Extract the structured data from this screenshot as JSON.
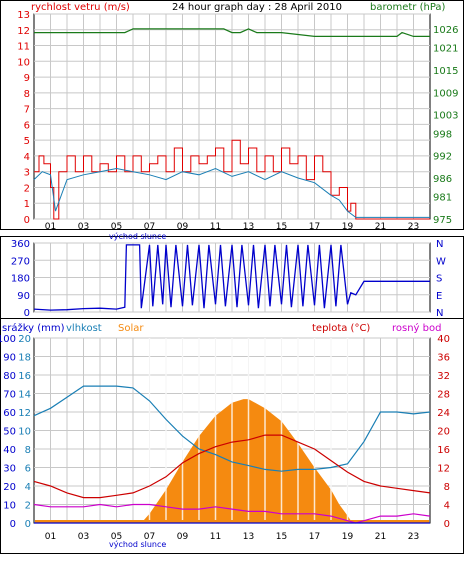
{
  "colors": {
    "wind": "#e00000",
    "wind_avg": "#1a7fb5",
    "barometer": "#1a7a1a",
    "direction": "#0000cc",
    "humidity": "#1a7fb5",
    "solar": "#f58a10",
    "temperature": "#cc0000",
    "dewpoint": "#cc00cc",
    "rain": "#0000cc",
    "grid": "#c8c8c8",
    "axis": "#000000"
  },
  "chart_data": [
    {
      "type": "line",
      "title": "24 hour graph day : 28 April 2010",
      "ylabel_left": "rychlost vetru (m/s)",
      "ylabel_right": "barometr (hPa)",
      "xlim": [
        0,
        24
      ],
      "ylim_left": [
        0,
        13
      ],
      "ylim_right": [
        975,
        1030
      ],
      "left_ticks": [
        "0",
        "1",
        "2",
        "3",
        "4",
        "5",
        "6",
        "7",
        "8",
        "9",
        "10",
        "11",
        "12",
        "13"
      ],
      "right_ticks": [
        "975",
        "981",
        "986",
        "992",
        "998",
        "1003",
        "1009",
        "1015",
        "1021",
        "1026"
      ],
      "x_ticks": [
        "01",
        "03",
        "05",
        "07",
        "09",
        "11",
        "13",
        "15",
        "17",
        "19",
        "21",
        "23"
      ],
      "x_annotation": "východ slunce",
      "series": [
        {
          "key": "gust",
          "axis": "left",
          "color": "wind",
          "x": [
            0,
            0.3,
            0.6,
            1,
            1.2,
            1.5,
            2,
            2.5,
            3,
            3.5,
            4,
            4.5,
            5,
            5.5,
            6,
            6.5,
            7,
            7.5,
            8,
            8.5,
            9,
            9.5,
            10,
            10.5,
            11,
            11.5,
            12,
            12.5,
            13,
            13.5,
            14,
            14.5,
            15,
            15.5,
            16,
            16.5,
            17,
            17.5,
            18,
            18.5,
            19,
            19.2,
            19.5,
            20,
            24
          ],
          "values": [
            3,
            4,
            3.5,
            2,
            0,
            3,
            4,
            3,
            4,
            3,
            3.5,
            3,
            4,
            3,
            4,
            3,
            3.5,
            4,
            3,
            4.5,
            3,
            4,
            3.5,
            4,
            4.5,
            3,
            5,
            3.5,
            4.5,
            3,
            4,
            3,
            4.5,
            3.5,
            4,
            2.5,
            4,
            3,
            1.5,
            2,
            0.5,
            1,
            0,
            0,
            0
          ]
        },
        {
          "key": "avg",
          "axis": "left",
          "color": "wind_avg",
          "x": [
            0,
            0.5,
            1,
            1.3,
            2,
            3,
            4,
            5,
            6,
            7,
            8,
            9,
            10,
            11,
            12,
            13,
            14,
            15,
            16,
            17,
            18,
            18.5,
            19,
            19.5,
            20,
            21,
            22,
            23,
            24
          ],
          "values": [
            2.5,
            3,
            2.8,
            0.5,
            2.5,
            2.8,
            3,
            3.2,
            3,
            2.8,
            2.5,
            3,
            2.8,
            3.2,
            2.7,
            3,
            2.5,
            3,
            2.6,
            2.3,
            1.5,
            1.2,
            0.5,
            0.1,
            0.1,
            0.1,
            0.1,
            0.1,
            0.1
          ]
        },
        {
          "key": "baro",
          "axis": "right",
          "color": "barometer",
          "x": [
            0,
            2,
            4,
            5.5,
            6,
            8,
            10,
            11,
            11.5,
            12,
            12.5,
            13,
            13.5,
            15,
            17,
            18,
            18.5,
            19.5,
            21,
            22,
            22.3,
            23,
            24
          ],
          "values": [
            1025,
            1025,
            1025,
            1025,
            1026,
            1026,
            1026,
            1026,
            1026,
            1025,
            1025,
            1026,
            1025,
            1025,
            1024,
            1024,
            1024,
            1024,
            1024,
            1024,
            1025,
            1024,
            1024
          ]
        }
      ]
    },
    {
      "type": "scatter",
      "ylabel_right_letters": [
        "N",
        "W",
        "S",
        "E",
        "N"
      ],
      "left_ticks": [
        "0",
        "90",
        "180",
        "270",
        "360"
      ],
      "ylim": [
        0,
        360
      ],
      "series": [
        {
          "key": "direction",
          "color": "direction",
          "x": [
            0,
            1,
            2,
            3,
            4,
            5,
            5.5,
            5.6,
            6,
            6.4,
            6.5,
            7,
            7.2,
            7.5,
            7.8,
            8,
            8.3,
            8.6,
            9,
            9.3,
            9.6,
            10,
            10.3,
            10.6,
            11,
            11.3,
            11.6,
            12,
            12.3,
            12.6,
            13,
            13.3,
            13.6,
            14,
            14.3,
            14.6,
            15,
            15.3,
            15.6,
            16,
            16.3,
            16.6,
            17,
            17.3,
            17.6,
            18,
            18.3,
            18.6,
            19,
            19.2,
            19.5,
            20,
            24
          ],
          "values": [
            15,
            10,
            12,
            18,
            20,
            15,
            25,
            350,
            350,
            350,
            20,
            350,
            30,
            350,
            40,
            350,
            25,
            350,
            30,
            350,
            35,
            350,
            20,
            350,
            40,
            350,
            30,
            350,
            25,
            350,
            35,
            350,
            20,
            350,
            30,
            350,
            40,
            350,
            25,
            350,
            30,
            350,
            35,
            350,
            20,
            350,
            30,
            350,
            40,
            100,
            90,
            160,
            160
          ]
        }
      ]
    },
    {
      "type": "line",
      "ylabel_left": "srážky (mm)",
      "labels": [
        "vlhkost",
        "Solar"
      ],
      "ylabel_right": "teplota (°C)",
      "label_dew": "rosný bod",
      "left_ticks": [
        "0",
        "10",
        "20",
        "30",
        "40",
        "50",
        "60",
        "70",
        "80",
        "90",
        "100"
      ],
      "rain_ticks": [
        "0",
        "2",
        "4",
        "6",
        "8",
        "10",
        "12",
        "14",
        "16",
        "18",
        "20"
      ],
      "right_ticks": [
        "0",
        "4",
        "8",
        "12",
        "16",
        "20",
        "24",
        "28",
        "32",
        "36",
        "40"
      ],
      "ylim_left": [
        0,
        100
      ],
      "ylim_right": [
        0,
        40
      ],
      "x_ticks": [
        "01",
        "03",
        "05",
        "07",
        "09",
        "11",
        "13",
        "15",
        "17",
        "19",
        "21",
        "23"
      ],
      "x_annotation": "východ slunce",
      "series": [
        {
          "key": "humidity",
          "axis": "left",
          "color": "humidity",
          "x": [
            0,
            1,
            2,
            3,
            4,
            5,
            6,
            7,
            8,
            9,
            10,
            11,
            12,
            13,
            14,
            15,
            16,
            17,
            18,
            19,
            20,
            21,
            22,
            23,
            24
          ],
          "values": [
            58,
            62,
            68,
            74,
            74,
            74,
            73,
            66,
            56,
            47,
            40,
            37,
            33,
            31,
            29,
            28,
            29,
            29,
            30,
            32,
            44,
            60,
            60,
            59,
            60
          ]
        },
        {
          "key": "solar",
          "axis": "left",
          "color": "solar",
          "x": [
            0,
            6.5,
            7,
            8,
            9,
            10,
            11,
            12,
            12.7,
            13,
            14,
            15,
            16,
            17,
            18,
            18.5,
            19,
            19.3,
            20,
            24
          ],
          "values": [
            0,
            0,
            5,
            18,
            33,
            47,
            58,
            65,
            67,
            67,
            62,
            55,
            43,
            30,
            18,
            10,
            4,
            0,
            0,
            0
          ]
        },
        {
          "key": "temperature",
          "axis": "right",
          "color": "temperature",
          "x": [
            0,
            1,
            2,
            3,
            4,
            5,
            6,
            7,
            8,
            9,
            10,
            11,
            12,
            13,
            14,
            15,
            16,
            17,
            18,
            19,
            20,
            21,
            22,
            23,
            24
          ],
          "values": [
            9,
            8,
            6.5,
            5.5,
            5.5,
            6,
            6.5,
            8,
            10,
            13,
            15,
            16.5,
            17.5,
            18,
            19,
            19,
            17.5,
            16,
            13.5,
            11,
            9,
            8,
            7.5,
            7,
            6.5
          ]
        },
        {
          "key": "dewpoint",
          "axis": "right",
          "color": "dewpoint",
          "x": [
            0,
            1,
            2,
            3,
            4,
            5,
            6,
            7,
            8,
            9,
            10,
            11,
            12,
            13,
            14,
            15,
            16,
            17,
            18,
            19,
            19.5,
            20,
            21,
            22,
            23,
            24
          ],
          "values": [
            4,
            3.5,
            3.5,
            3.5,
            4,
            3.5,
            4,
            4,
            3.5,
            3,
            3,
            3.5,
            3,
            2.5,
            2.5,
            2,
            2,
            2,
            1.5,
            0.5,
            0,
            0.5,
            1.5,
            1.5,
            2,
            1.5
          ]
        },
        {
          "key": "rain",
          "axis": "left",
          "color": "rain",
          "x": [
            0,
            24
          ],
          "values": [
            0,
            0
          ]
        }
      ]
    }
  ]
}
